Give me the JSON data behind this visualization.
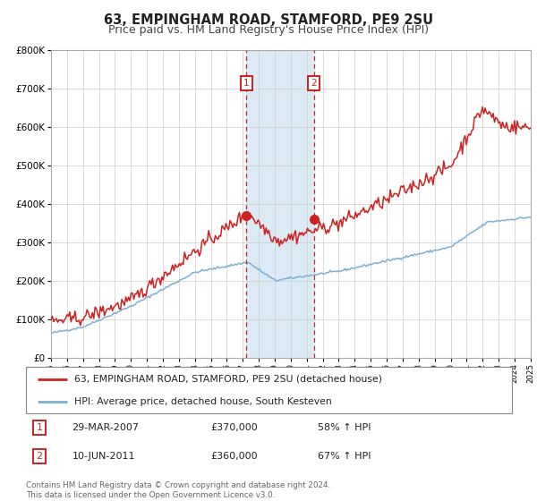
{
  "title": "63, EMPINGHAM ROAD, STAMFORD, PE9 2SU",
  "subtitle": "Price paid vs. HM Land Registry's House Price Index (HPI)",
  "legend_line1": "63, EMPINGHAM ROAD, STAMFORD, PE9 2SU (detached house)",
  "legend_line2": "HPI: Average price, detached house, South Kesteven",
  "marker1_date": "29-MAR-2007",
  "marker1_price": 370000,
  "marker1_label": "58% ↑ HPI",
  "marker2_date": "10-JUN-2011",
  "marker2_price": 360000,
  "marker2_label": "67% ↑ HPI",
  "footer1": "Contains HM Land Registry data © Crown copyright and database right 2024.",
  "footer2": "This data is licensed under the Open Government Licence v3.0.",
  "hpi_color": "#7db0d5",
  "price_color": "#cc2222",
  "marker_color": "#cc2222",
  "vline_color": "#cc2222",
  "shade_color": "#dbeaf5",
  "ylim": [
    0,
    800000
  ],
  "marker1_x": 2007.23,
  "marker2_x": 2011.44,
  "grid_color": "#cccccc",
  "title_fontsize": 10.5,
  "subtitle_fontsize": 9.0,
  "background": "#ffffff"
}
